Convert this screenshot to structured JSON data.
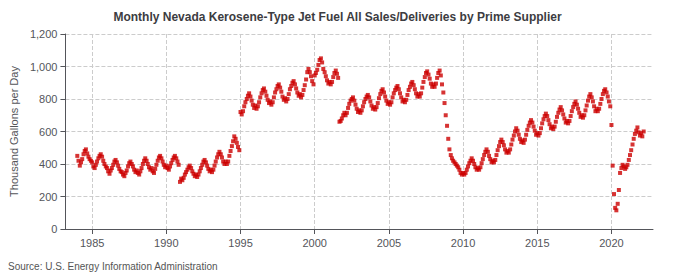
{
  "chart_data": {
    "type": "scatter",
    "title": "Monthly Nevada Kerosene-Type Jet Fuel All Sales/Deliveries by Prime Supplier",
    "ylabel": "Thousand Gallons per Day",
    "annotation": "Source: U.S. Energy Information Administration",
    "color": "#cc0000",
    "marker": "square",
    "grid": true,
    "xlim": [
      1983.2,
      2022.8
    ],
    "xticks": [
      1985,
      1990,
      1995,
      2000,
      2005,
      2010,
      2015,
      2020
    ],
    "ylim": [
      0,
      1200
    ],
    "yticks": [
      0,
      200,
      400,
      600,
      800,
      {
        "value": 1000,
        "label": "1,000"
      },
      {
        "value": 1200,
        "label": "1,200"
      }
    ],
    "x": [
      1984.0,
      1984.08,
      1984.17,
      1984.25,
      1984.33,
      1984.42,
      1984.5,
      1984.58,
      1984.67,
      1984.75,
      1984.83,
      1984.92,
      1985.0,
      1985.08,
      1985.17,
      1985.25,
      1985.33,
      1985.42,
      1985.5,
      1985.58,
      1985.67,
      1985.75,
      1985.83,
      1985.92,
      1986.0,
      1986.08,
      1986.17,
      1986.25,
      1986.33,
      1986.42,
      1986.5,
      1986.58,
      1986.67,
      1986.75,
      1986.83,
      1986.92,
      1987.0,
      1987.08,
      1987.17,
      1987.25,
      1987.33,
      1987.42,
      1987.5,
      1987.58,
      1987.67,
      1987.75,
      1987.83,
      1987.92,
      1988.0,
      1988.08,
      1988.17,
      1988.25,
      1988.33,
      1988.42,
      1988.5,
      1988.58,
      1988.67,
      1988.75,
      1988.83,
      1988.92,
      1989.0,
      1989.08,
      1989.17,
      1989.25,
      1989.33,
      1989.42,
      1989.5,
      1989.58,
      1989.67,
      1989.75,
      1989.83,
      1989.92,
      1990.0,
      1990.08,
      1990.17,
      1990.25,
      1990.33,
      1990.42,
      1990.5,
      1990.58,
      1990.67,
      1990.75,
      1990.83,
      1990.92,
      1991.0,
      1991.08,
      1991.17,
      1991.25,
      1991.33,
      1991.42,
      1991.5,
      1991.58,
      1991.67,
      1991.75,
      1991.83,
      1991.92,
      1992.0,
      1992.08,
      1992.17,
      1992.25,
      1992.33,
      1992.42,
      1992.5,
      1992.58,
      1992.67,
      1992.75,
      1992.83,
      1992.92,
      1993.0,
      1993.08,
      1993.17,
      1993.25,
      1993.33,
      1993.42,
      1993.5,
      1993.58,
      1993.67,
      1993.75,
      1993.83,
      1993.92,
      1994.0,
      1994.08,
      1994.17,
      1994.25,
      1994.33,
      1994.42,
      1994.5,
      1994.58,
      1994.67,
      1994.75,
      1994.83,
      1994.92,
      1995.0,
      1995.08,
      1995.17,
      1995.25,
      1995.33,
      1995.42,
      1995.5,
      1995.58,
      1995.67,
      1995.75,
      1995.83,
      1995.92,
      1996.0,
      1996.08,
      1996.17,
      1996.25,
      1996.33,
      1996.42,
      1996.5,
      1996.58,
      1996.67,
      1996.75,
      1996.83,
      1996.92,
      1997.0,
      1997.08,
      1997.17,
      1997.25,
      1997.33,
      1997.42,
      1997.5,
      1997.58,
      1997.67,
      1997.75,
      1997.83,
      1997.92,
      1998.0,
      1998.08,
      1998.17,
      1998.25,
      1998.33,
      1998.42,
      1998.5,
      1998.58,
      1998.67,
      1998.75,
      1998.83,
      1998.92,
      1999.0,
      1999.08,
      1999.17,
      1999.25,
      1999.33,
      1999.42,
      1999.5,
      1999.58,
      1999.67,
      1999.75,
      1999.83,
      1999.92,
      2000.0,
      2000.08,
      2000.17,
      2000.25,
      2000.33,
      2000.42,
      2000.5,
      2000.58,
      2000.67,
      2000.75,
      2000.83,
      2000.92,
      2001.0,
      2001.08,
      2001.17,
      2001.25,
      2001.33,
      2001.42,
      2001.5,
      2001.58,
      2001.67,
      2001.75,
      2001.83,
      2001.92,
      2002.0,
      2002.08,
      2002.17,
      2002.25,
      2002.33,
      2002.42,
      2002.5,
      2002.58,
      2002.67,
      2002.75,
      2002.83,
      2002.92,
      2003.0,
      2003.08,
      2003.17,
      2003.25,
      2003.33,
      2003.42,
      2003.5,
      2003.58,
      2003.67,
      2003.75,
      2003.83,
      2003.92,
      2004.0,
      2004.08,
      2004.17,
      2004.25,
      2004.33,
      2004.42,
      2004.5,
      2004.58,
      2004.67,
      2004.75,
      2004.83,
      2004.92,
      2005.0,
      2005.08,
      2005.17,
      2005.25,
      2005.33,
      2005.42,
      2005.5,
      2005.58,
      2005.67,
      2005.75,
      2005.83,
      2005.92,
      2006.0,
      2006.08,
      2006.17,
      2006.25,
      2006.33,
      2006.42,
      2006.5,
      2006.58,
      2006.67,
      2006.75,
      2006.83,
      2006.92,
      2007.0,
      2007.08,
      2007.17,
      2007.25,
      2007.33,
      2007.42,
      2007.5,
      2007.58,
      2007.67,
      2007.75,
      2007.83,
      2007.92,
      2008.0,
      2008.08,
      2008.17,
      2008.25,
      2008.33,
      2008.42,
      2008.5,
      2008.58,
      2008.67,
      2008.75,
      2008.83,
      2008.92,
      2009.0,
      2009.08,
      2009.17,
      2009.25,
      2009.33,
      2009.42,
      2009.5,
      2009.58,
      2009.67,
      2009.75,
      2009.83,
      2009.92,
      2010.0,
      2010.08,
      2010.17,
      2010.25,
      2010.33,
      2010.42,
      2010.5,
      2010.58,
      2010.67,
      2010.75,
      2010.83,
      2010.92,
      2011.0,
      2011.08,
      2011.17,
      2011.25,
      2011.33,
      2011.42,
      2011.5,
      2011.58,
      2011.67,
      2011.75,
      2011.83,
      2011.92,
      2012.0,
      2012.08,
      2012.17,
      2012.25,
      2012.33,
      2012.42,
      2012.5,
      2012.58,
      2012.67,
      2012.75,
      2012.83,
      2012.92,
      2013.0,
      2013.08,
      2013.17,
      2013.25,
      2013.33,
      2013.42,
      2013.5,
      2013.58,
      2013.67,
      2013.75,
      2013.83,
      2013.92,
      2014.0,
      2014.08,
      2014.17,
      2014.25,
      2014.33,
      2014.42,
      2014.5,
      2014.58,
      2014.67,
      2014.75,
      2014.83,
      2014.92,
      2015.0,
      2015.08,
      2015.17,
      2015.25,
      2015.33,
      2015.42,
      2015.5,
      2015.58,
      2015.67,
      2015.75,
      2015.83,
      2015.92,
      2016.0,
      2016.08,
      2016.17,
      2016.25,
      2016.33,
      2016.42,
      2016.5,
      2016.58,
      2016.67,
      2016.75,
      2016.83,
      2016.92,
      2017.0,
      2017.08,
      2017.17,
      2017.25,
      2017.33,
      2017.42,
      2017.5,
      2017.58,
      2017.67,
      2017.75,
      2017.83,
      2017.92,
      2018.0,
      2018.08,
      2018.17,
      2018.25,
      2018.33,
      2018.42,
      2018.5,
      2018.58,
      2018.67,
      2018.75,
      2018.83,
      2018.92,
      2019.0,
      2019.08,
      2019.17,
      2019.25,
      2019.33,
      2019.42,
      2019.5,
      2019.58,
      2019.67,
      2019.75,
      2019.83,
      2019.92,
      2020.0,
      2020.08,
      2020.17,
      2020.25,
      2020.33,
      2020.42,
      2020.5,
      2020.58,
      2020.67,
      2020.75,
      2020.83,
      2020.92,
      2021.0,
      2021.08,
      2021.17,
      2021.25,
      2021.33,
      2021.42,
      2021.5,
      2021.58,
      2021.67,
      2021.75,
      2021.83,
      2021.92,
      2022.0,
      2022.08,
      2022.17
    ],
    "values": [
      450,
      420,
      390,
      410,
      430,
      460,
      480,
      490,
      465,
      445,
      430,
      420,
      410,
      385,
      375,
      395,
      415,
      435,
      450,
      460,
      445,
      420,
      400,
      385,
      375,
      355,
      340,
      360,
      375,
      395,
      415,
      425,
      410,
      390,
      370,
      355,
      350,
      335,
      325,
      345,
      360,
      385,
      405,
      415,
      400,
      385,
      365,
      350,
      360,
      345,
      335,
      355,
      375,
      400,
      420,
      435,
      420,
      400,
      380,
      365,
      375,
      355,
      345,
      370,
      395,
      420,
      440,
      450,
      435,
      415,
      395,
      380,
      390,
      375,
      365,
      385,
      405,
      425,
      440,
      450,
      435,
      415,
      395,
      290,
      310,
      300,
      315,
      335,
      350,
      365,
      380,
      390,
      375,
      355,
      340,
      325,
      335,
      320,
      335,
      355,
      375,
      395,
      415,
      425,
      410,
      390,
      370,
      355,
      365,
      350,
      365,
      390,
      415,
      440,
      460,
      475,
      460,
      440,
      415,
      400,
      415,
      400,
      415,
      450,
      480,
      510,
      540,
      570,
      555,
      530,
      505,
      485,
      720,
      705,
      725,
      755,
      780,
      800,
      820,
      835,
      815,
      790,
      765,
      745,
      760,
      740,
      755,
      780,
      810,
      835,
      855,
      865,
      845,
      820,
      795,
      775,
      785,
      765,
      780,
      810,
      840,
      860,
      880,
      890,
      870,
      845,
      815,
      795,
      805,
      785,
      800,
      830,
      860,
      880,
      900,
      910,
      890,
      865,
      840,
      820,
      830,
      810,
      825,
      855,
      885,
      920,
      965,
      985,
      965,
      940,
      910,
      890,
      945,
      960,
      980,
      1010,
      1040,
      1050,
      1025,
      985,
      965,
      940,
      915,
      895,
      905,
      890,
      905,
      935,
      960,
      975,
      955,
      930,
      660,
      665,
      680,
      700,
      715,
      700,
      715,
      745,
      770,
      790,
      800,
      810,
      790,
      765,
      740,
      720,
      730,
      715,
      730,
      755,
      780,
      800,
      815,
      825,
      810,
      785,
      760,
      740,
      750,
      735,
      750,
      775,
      805,
      830,
      850,
      860,
      840,
      815,
      790,
      770,
      780,
      765,
      780,
      810,
      835,
      855,
      870,
      880,
      860,
      835,
      810,
      785,
      795,
      780,
      795,
      825,
      855,
      875,
      895,
      905,
      885,
      860,
      835,
      815,
      830,
      815,
      835,
      870,
      905,
      935,
      960,
      970,
      950,
      925,
      895,
      875,
      890,
      875,
      895,
      930,
      960,
      975,
      945,
      890,
      840,
      775,
      700,
      635,
      555,
      490,
      455,
      435,
      420,
      410,
      400,
      390,
      380,
      365,
      345,
      335,
      345,
      335,
      345,
      365,
      385,
      405,
      420,
      435,
      420,
      400,
      380,
      365,
      375,
      365,
      380,
      405,
      430,
      455,
      475,
      490,
      475,
      450,
      430,
      410,
      420,
      410,
      425,
      455,
      485,
      510,
      535,
      550,
      535,
      515,
      490,
      470,
      480,
      470,
      490,
      520,
      550,
      575,
      600,
      620,
      605,
      580,
      555,
      535,
      545,
      530,
      550,
      580,
      610,
      635,
      655,
      670,
      655,
      630,
      605,
      580,
      590,
      575,
      590,
      620,
      650,
      675,
      695,
      710,
      695,
      670,
      645,
      620,
      630,
      615,
      630,
      660,
      690,
      715,
      735,
      750,
      730,
      705,
      680,
      655,
      665,
      650,
      665,
      695,
      725,
      750,
      770,
      785,
      765,
      740,
      715,
      690,
      700,
      685,
      700,
      730,
      760,
      790,
      815,
      830,
      810,
      785,
      755,
      725,
      740,
      725,
      740,
      770,
      800,
      830,
      850,
      860,
      840,
      815,
      785,
      755,
      640,
      390,
      215,
      130,
      115,
      155,
      240,
      345,
      375,
      395,
      385,
      370,
      380,
      395,
      425,
      455,
      485,
      520,
      555,
      585,
      605,
      625,
      595,
      575,
      590,
      570,
      600
    ]
  }
}
